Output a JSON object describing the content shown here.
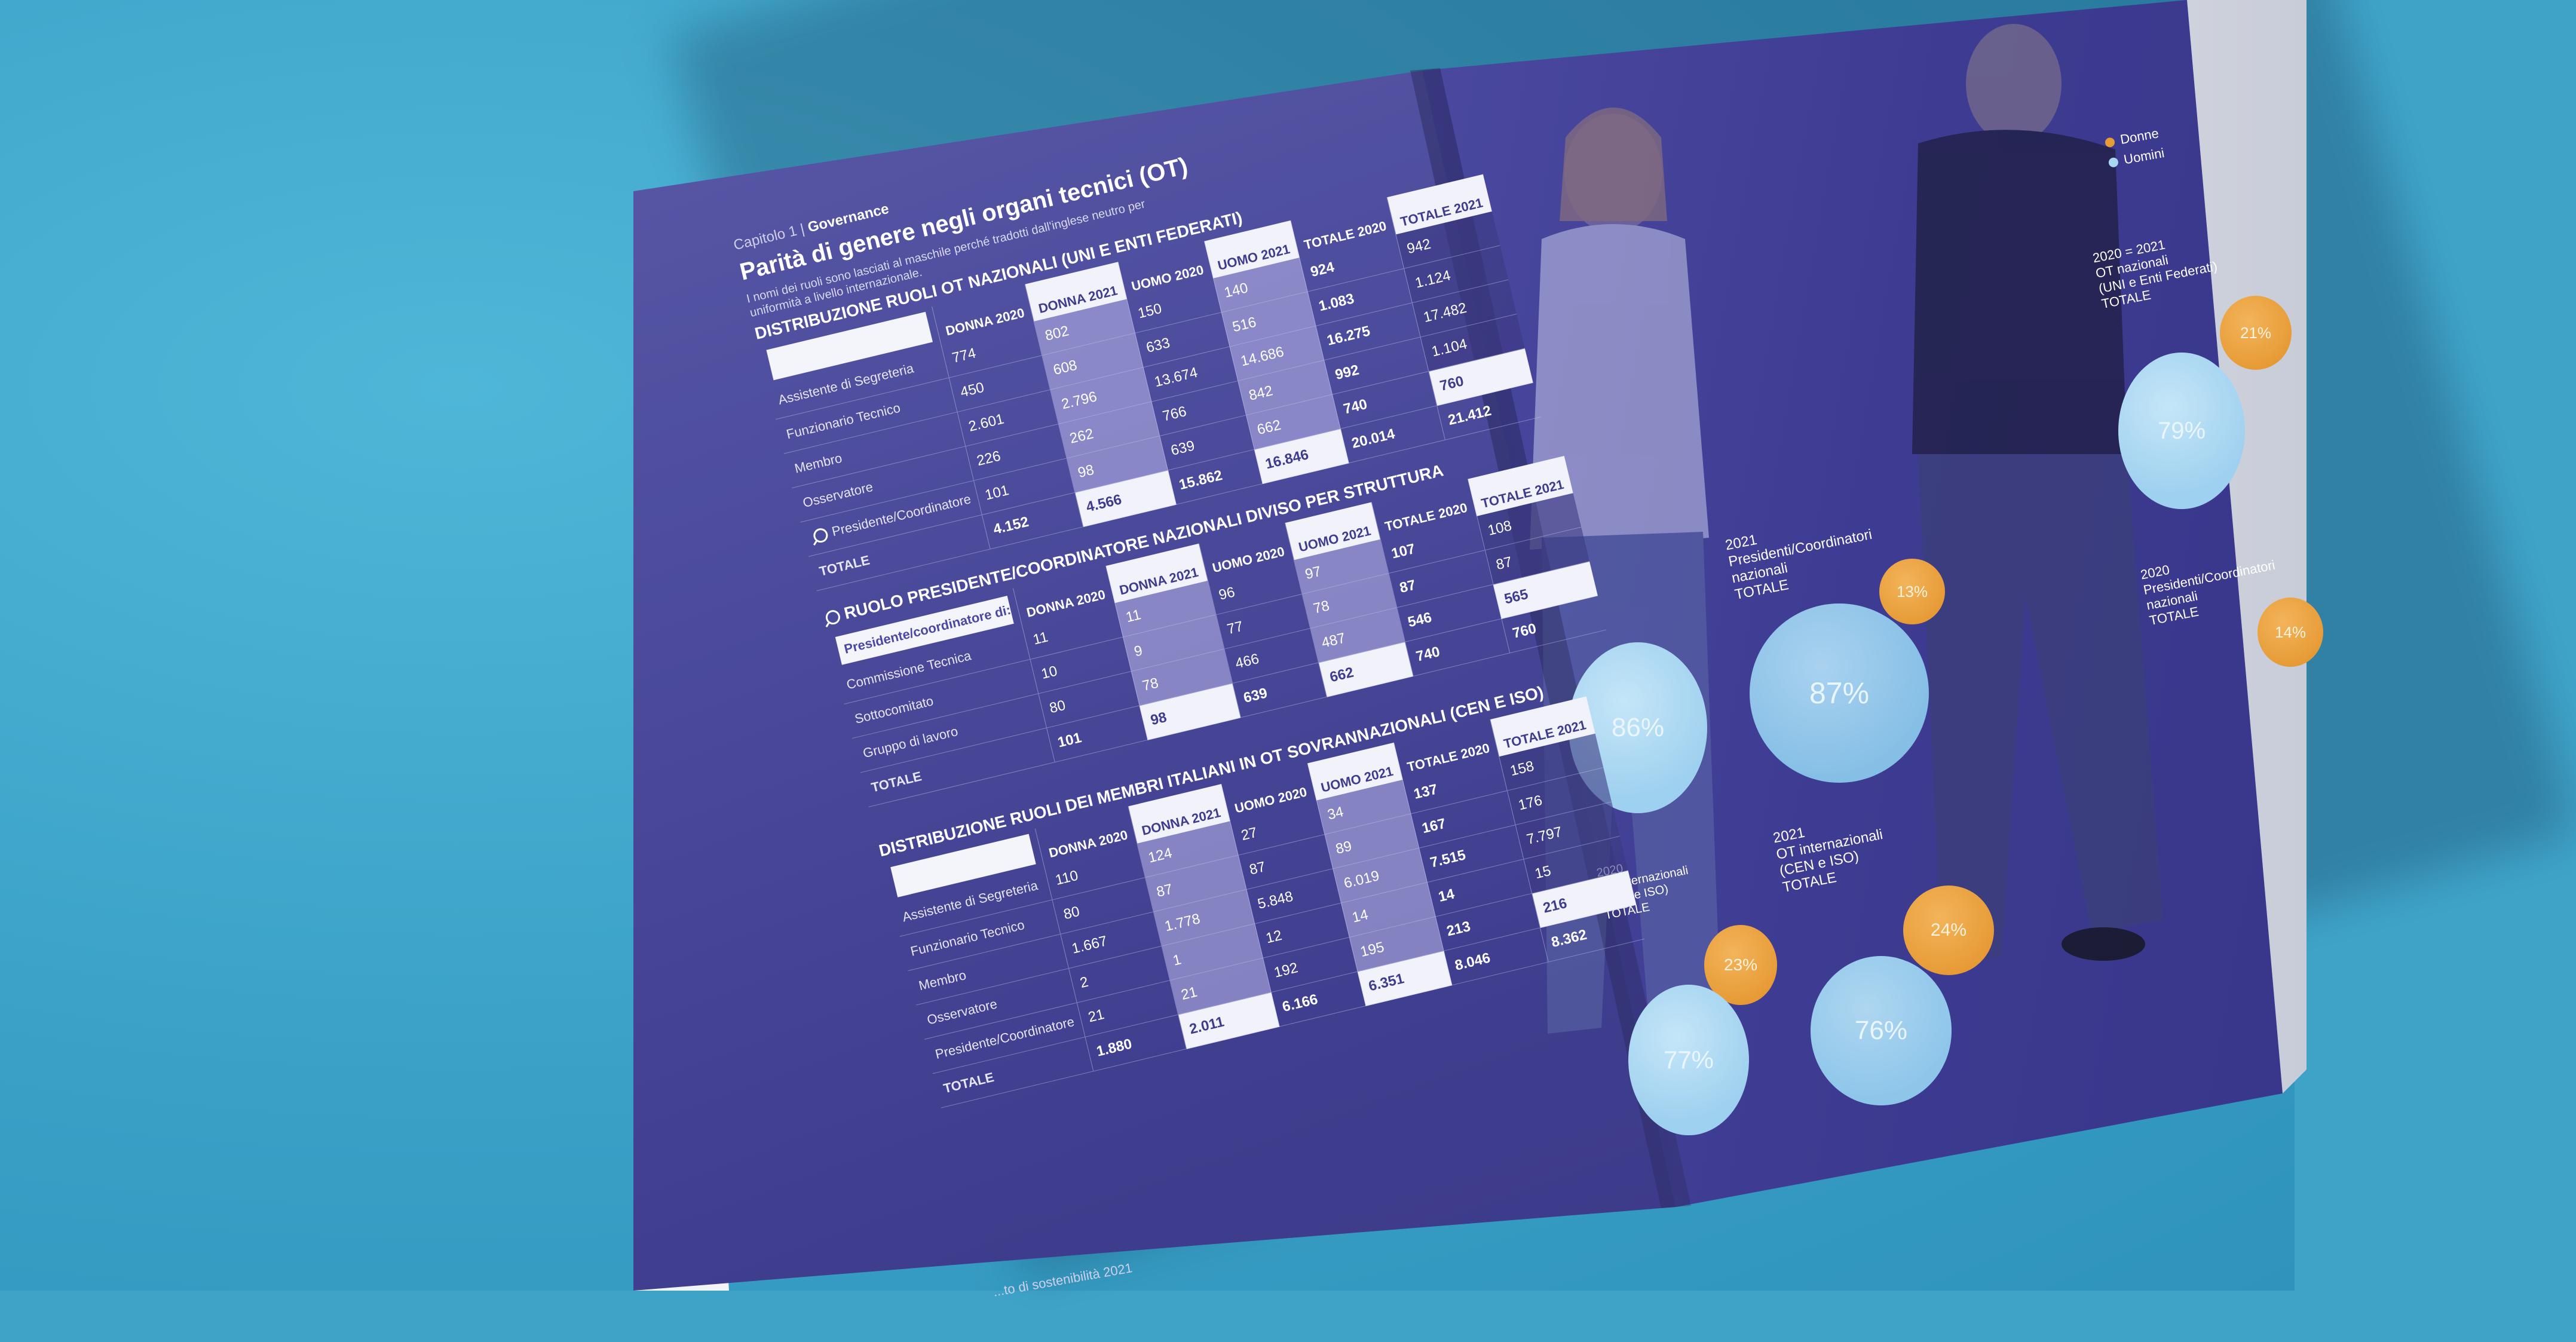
{
  "page": {
    "crumb_chapter": "Capitolo 1 | ",
    "crumb_section": "Governance",
    "title": "Parità di genere negli organi tecnici (OT)",
    "subtitle": "I nomi dei ruoli sono lasciati al maschile perché tradotti dall'inglese neutro per uniformità a livello internazionale.",
    "footer": "...to di sostenibilità 2021"
  },
  "col_headers": [
    "DONNA 2020",
    "DONNA 2021",
    "UOMO 2020",
    "UOMO 2021",
    "TOTALE 2020",
    "TOTALE 2021"
  ],
  "table1": {
    "title": "DISTRIBUZIONE RUOLI OT NAZIONALI (UNI E ENTI FEDERATI)",
    "label_box": "",
    "rows": [
      {
        "label": "Assistente di Segreteria",
        "v": [
          "774",
          "802",
          "150",
          "140",
          "924",
          "942"
        ]
      },
      {
        "label": "Funzionario Tecnico",
        "v": [
          "450",
          "608",
          "633",
          "516",
          "1.083",
          "1.124"
        ]
      },
      {
        "label": "Membro",
        "v": [
          "2.601",
          "2.796",
          "13.674",
          "14.686",
          "16.275",
          "17.482"
        ]
      },
      {
        "label": "Osservatore",
        "v": [
          "226",
          "262",
          "766",
          "842",
          "992",
          "1.104"
        ]
      },
      {
        "label": "Presidente/Coordinatore",
        "v": [
          "101",
          "98",
          "639",
          "662",
          "740",
          "760"
        ]
      }
    ],
    "total_label": "TOTALE",
    "totals": [
      "4.152",
      "4.566",
      "15.862",
      "16.846",
      "20.014",
      "21.412"
    ]
  },
  "table2": {
    "title": "RUOLO PRESIDENTE/COORDINATORE NAZIONALI DIVISO PER STRUTTURA",
    "label_box": "Presidente/coordinatore di:",
    "rows": [
      {
        "label": "Commissione Tecnica",
        "v": [
          "11",
          "11",
          "96",
          "97",
          "107",
          "108"
        ]
      },
      {
        "label": "Sottocomitato",
        "v": [
          "10",
          "9",
          "77",
          "78",
          "87",
          "87"
        ]
      },
      {
        "label": "Gruppo di lavoro",
        "v": [
          "80",
          "78",
          "466",
          "487",
          "546",
          "565"
        ]
      }
    ],
    "total_label": "TOTALE",
    "totals": [
      "101",
      "98",
      "639",
      "662",
      "740",
      "760"
    ]
  },
  "table3": {
    "title": "DISTRIBUZIONE RUOLI DEI MEMBRI ITALIANI IN OT SOVRANNAZIONALI (CEN E ISO)",
    "label_box": "",
    "rows": [
      {
        "label": "Assistente di Segreteria",
        "v": [
          "110",
          "124",
          "27",
          "34",
          "137",
          "158"
        ]
      },
      {
        "label": "Funzionario Tecnico",
        "v": [
          "80",
          "87",
          "87",
          "89",
          "167",
          "176"
        ]
      },
      {
        "label": "Membro",
        "v": [
          "1.667",
          "1.778",
          "5.848",
          "6.019",
          "7.515",
          "7.797"
        ]
      },
      {
        "label": "Osservatore",
        "v": [
          "2",
          "1",
          "12",
          "14",
          "14",
          "15"
        ]
      },
      {
        "label": "Presidente/Coordinatore",
        "v": [
          "21",
          "21",
          "192",
          "195",
          "213",
          "216"
        ]
      }
    ],
    "total_label": "TOTALE",
    "totals": [
      "1.880",
      "2.011",
      "6.166",
      "6.351",
      "8.046",
      "8.362"
    ]
  },
  "legend": {
    "women": "Donne",
    "men": "Uomini"
  },
  "colors": {
    "women": "#e89c38",
    "men": "#a9d7f1",
    "page": "#4b4a9b",
    "background": "#3fa3c8"
  },
  "chart_data": [
    {
      "type": "pie",
      "title": "2020 = 2021 OT nazionali (UNI e Enti Federati) TOTALE",
      "labels": [
        "Donne",
        "Uomini"
      ],
      "values": [
        21,
        79
      ]
    },
    {
      "type": "pie",
      "title": "2020 Presidenti/Coordinatori nazionali TOTALE",
      "labels": [
        "Donne",
        "Uomini"
      ],
      "values": [
        14,
        86
      ]
    },
    {
      "type": "pie",
      "title": "2021 Presidenti/Coordinatori nazionali TOTALE",
      "labels": [
        "Donne",
        "Uomini"
      ],
      "values": [
        13,
        87
      ]
    },
    {
      "type": "pie",
      "title": "2020 OT internazionali (CEN e ISO) TOTALE",
      "labels": [
        "Donne",
        "Uomini"
      ],
      "values": [
        23,
        77
      ]
    },
    {
      "type": "pie",
      "title": "2021 OT internazionali (CEN e ISO) TOTALE",
      "labels": [
        "Donne",
        "Uomini"
      ],
      "values": [
        24,
        76
      ]
    }
  ],
  "bubbles": {
    "c1": {
      "label_lines": [
        "2020 = 2021",
        "OT nazionali",
        "(UNI e Enti Federati)",
        "TOTALE"
      ],
      "women": "21%",
      "men": "79%"
    },
    "c2": {
      "label_lines": [
        "2020",
        "Presidenti/Coordinatori",
        "nazionali",
        "TOTALE"
      ],
      "women": "14%",
      "men": "86%"
    },
    "c3": {
      "label_lines": [
        "2021",
        "Presidenti/Coordinatori",
        "nazionali",
        "TOTALE"
      ],
      "women": "13%",
      "men": "87%"
    },
    "c4": {
      "label_lines": [
        "2020",
        "OT internazionali",
        "(CEN e ISO)",
        "TOTALE"
      ],
      "women": "23%",
      "men": "77%"
    },
    "c5": {
      "label_lines": [
        "2021",
        "OT internazionali",
        "(CEN e ISO)",
        "TOTALE"
      ],
      "women": "24%",
      "men": "76%"
    }
  }
}
